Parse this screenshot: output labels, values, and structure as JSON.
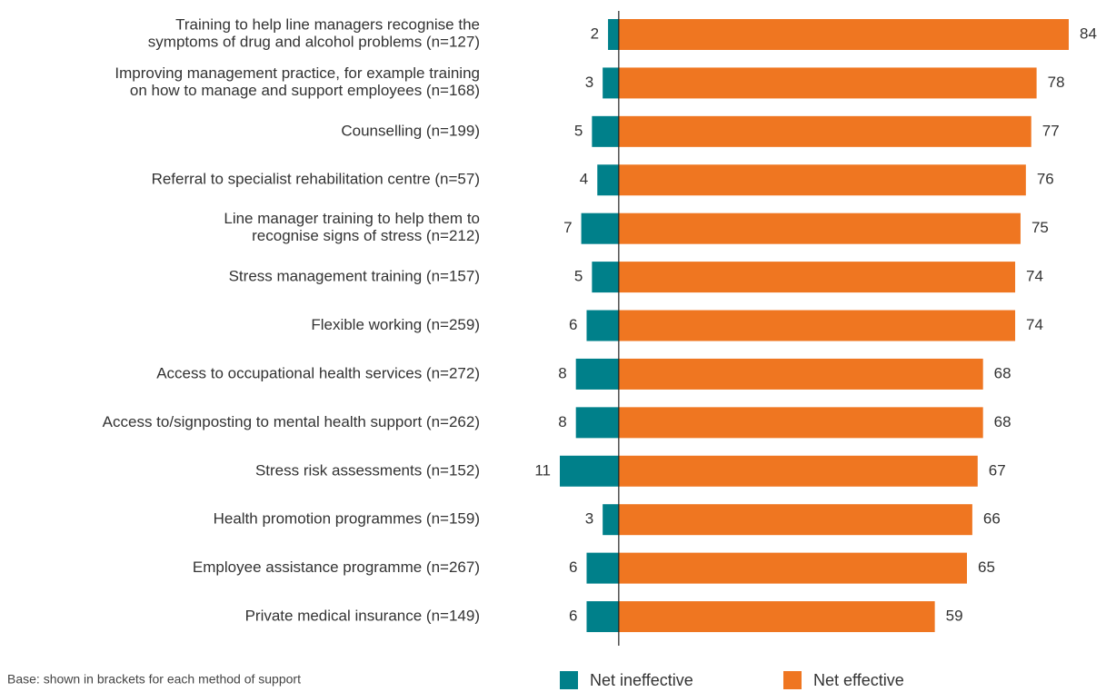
{
  "chart_data": {
    "type": "diverging-bar",
    "categories": [
      "Training to help line managers recognise the\nsymptoms of drug and alcohol problems (n=127)",
      "Improving management practice, for example training\non how to manage and support employees (n=168)",
      "Counselling (n=199)",
      "Referral to specialist rehabilitation centre (n=57)",
      "Line manager training to help them to\nrecognise signs of stress (n=212)",
      "Stress management training (n=157)",
      "Flexible working (n=259)",
      "Access to occupational health services (n=272)",
      "Access to/signposting to mental health support (n=262)",
      "Stress risk assessments (n=152)",
      "Health promotion programmes (n=159)",
      "Employee assistance programme (n=267)",
      "Private medical insurance (n=149)"
    ],
    "series": [
      {
        "name": "Net ineffective",
        "color": "#00808a",
        "direction": "left",
        "values": [
          2,
          3,
          5,
          4,
          7,
          5,
          6,
          8,
          8,
          11,
          3,
          6,
          6
        ]
      },
      {
        "name": "Net effective",
        "color": "#ef7621",
        "direction": "right",
        "values": [
          84,
          78,
          77,
          76,
          75,
          74,
          74,
          68,
          68,
          67,
          66,
          65,
          59
        ]
      }
    ],
    "xlim": [
      -11,
      84
    ],
    "legend": "bottom",
    "note": "Base: shown in brackets for each method of support"
  }
}
